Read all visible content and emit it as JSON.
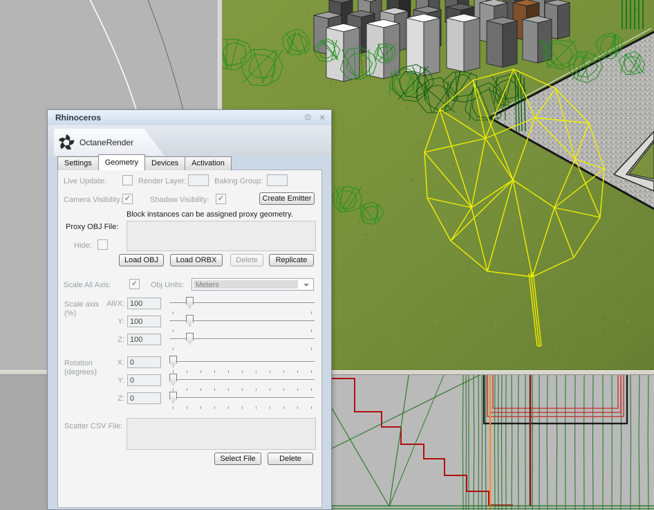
{
  "window": {
    "title": "Rhinoceros",
    "gear_icon": "⚙",
    "close_icon": "×"
  },
  "plugin": {
    "name": "OctaneRender"
  },
  "tabs": [
    {
      "label": "Settings"
    },
    {
      "label": "Geometry"
    },
    {
      "label": "Devices"
    },
    {
      "label": "Activation"
    }
  ],
  "form": {
    "live_update_label": "Live Update:",
    "render_layer_label": "Render Layer:",
    "render_layer_value": "",
    "baking_group_label": "Baking Group:",
    "baking_group_value": "",
    "camera_visibility_label": "Camera Visibility:",
    "shadow_visibility_label": "Shadow Visibility:",
    "create_emitter_button": "Create Emitter",
    "notice": "Block instances can be assigned proxy geometry.",
    "proxy_obj_label": "Proxy OBJ File:",
    "proxy_obj_value": "",
    "hide_label": "Hide:",
    "load_obj_button": "Load OBJ",
    "load_orbx_button": "Load ORBX",
    "delete_button": "Delete",
    "replicate_button": "Replicate",
    "scale_all_axis_label": "Scale All Axis:",
    "obj_units_label": "Obj Units:",
    "obj_units_value": "Meters",
    "scale_axis_label": "Scale axis",
    "scale_axis_unit": "(%)",
    "scale_rows": [
      {
        "label": "All/X:",
        "value": "100"
      },
      {
        "label": "Y:",
        "value": "100"
      },
      {
        "label": "Z:",
        "value": "100"
      }
    ],
    "rotation_label": "Rotation",
    "rotation_unit": "(degrees)",
    "rotation_rows": [
      {
        "label": "X:",
        "value": "0"
      },
      {
        "label": "Y:",
        "value": "0"
      },
      {
        "label": "Z:",
        "value": "0"
      }
    ],
    "scatter_label": "Scatter CSV File:",
    "scatter_value": "",
    "select_file_button": "Select File",
    "delete_file_button": "Delete"
  },
  "states": {
    "live_update": false,
    "camera_visibility": true,
    "shadow_visibility": true,
    "hide": false,
    "scale_all_axis": true,
    "check_glyph": "✓",
    "scale_slider_pos": 0.12,
    "rotation_slider_pos": 0
  },
  "colors": {
    "selection_yellow": "#f0f000",
    "wireframe_green": "#23911f",
    "grass_green": "#76903b",
    "dialog_frame": "#cdd8e6",
    "section_red": "#b01010",
    "section_orange": "#ff8c1a"
  }
}
